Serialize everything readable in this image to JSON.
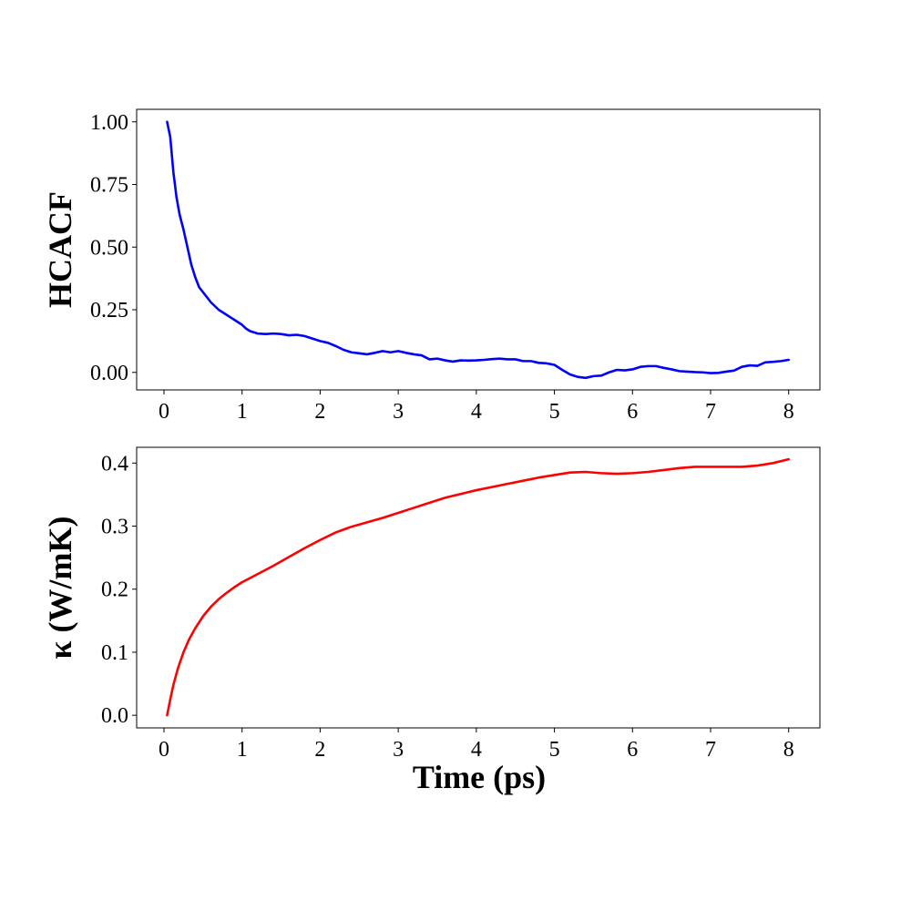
{
  "chart_data": [
    {
      "type": "line",
      "xlabel": "",
      "ylabel": "HCACF",
      "xlim": [
        -0.35,
        8.4
      ],
      "ylim": [
        -0.07,
        1.05
      ],
      "xticks": [
        0,
        1,
        2,
        3,
        4,
        5,
        6,
        7,
        8
      ],
      "xtick_labels": [
        "0",
        "1",
        "2",
        "3",
        "4",
        "5",
        "6",
        "7",
        "8"
      ],
      "yticks": [
        0.0,
        0.25,
        0.5,
        0.75,
        1.0
      ],
      "ytick_labels": [
        "0.00",
        "0.25",
        "0.50",
        "0.75",
        "1.00"
      ],
      "grid": false,
      "series": [
        {
          "color": "#0000ff",
          "x": [
            0.04,
            0.08,
            0.12,
            0.16,
            0.2,
            0.25,
            0.3,
            0.35,
            0.4,
            0.45,
            0.5,
            0.6,
            0.7,
            0.8,
            0.9,
            1.0,
            1.05,
            1.1,
            1.2,
            1.3,
            1.4,
            1.5,
            1.6,
            1.7,
            1.8,
            1.9,
            2.0,
            2.1,
            2.2,
            2.3,
            2.4,
            2.5,
            2.6,
            2.7,
            2.8,
            2.9,
            3.0,
            3.1,
            3.2,
            3.3,
            3.4,
            3.5,
            3.6,
            3.7,
            3.8,
            3.9,
            4.0,
            4.1,
            4.2,
            4.3,
            4.4,
            4.5,
            4.6,
            4.7,
            4.8,
            4.9,
            5.0,
            5.1,
            5.2,
            5.3,
            5.4,
            5.5,
            5.6,
            5.7,
            5.8,
            5.9,
            6.0,
            6.1,
            6.2,
            6.3,
            6.4,
            6.5,
            6.6,
            6.7,
            6.8,
            6.9,
            7.0,
            7.1,
            7.2,
            7.3,
            7.4,
            7.5,
            7.6,
            7.7,
            7.8,
            7.9,
            8.0
          ],
          "values": [
            1.0,
            0.94,
            0.8,
            0.7,
            0.63,
            0.57,
            0.5,
            0.43,
            0.38,
            0.34,
            0.32,
            0.28,
            0.25,
            0.23,
            0.21,
            0.19,
            0.175,
            0.165,
            0.155,
            0.153,
            0.155,
            0.153,
            0.148,
            0.15,
            0.145,
            0.135,
            0.125,
            0.118,
            0.105,
            0.09,
            0.08,
            0.076,
            0.072,
            0.078,
            0.085,
            0.08,
            0.085,
            0.078,
            0.072,
            0.068,
            0.052,
            0.055,
            0.048,
            0.043,
            0.048,
            0.047,
            0.048,
            0.05,
            0.053,
            0.055,
            0.052,
            0.052,
            0.045,
            0.045,
            0.038,
            0.036,
            0.03,
            0.01,
            -0.008,
            -0.018,
            -0.022,
            -0.015,
            -0.013,
            0.0,
            0.01,
            0.008,
            0.012,
            0.022,
            0.025,
            0.025,
            0.018,
            0.012,
            0.005,
            0.003,
            0.001,
            0.0,
            -0.003,
            -0.002,
            0.003,
            0.007,
            0.022,
            0.028,
            0.026,
            0.04,
            0.042,
            0.045,
            0.05
          ]
        }
      ]
    },
    {
      "type": "line",
      "xlabel": "Time (ps)",
      "ylabel": "κ (W/mK)",
      "xlim": [
        -0.35,
        8.4
      ],
      "ylim": [
        -0.02,
        0.425
      ],
      "xticks": [
        0,
        1,
        2,
        3,
        4,
        5,
        6,
        7,
        8
      ],
      "xtick_labels": [
        "0",
        "1",
        "2",
        "3",
        "4",
        "5",
        "6",
        "7",
        "8"
      ],
      "yticks": [
        0.0,
        0.1,
        0.2,
        0.3,
        0.4
      ],
      "ytick_labels": [
        "0.0",
        "0.1",
        "0.2",
        "0.3",
        "0.4"
      ],
      "grid": false,
      "series": [
        {
          "color": "#ff0000",
          "x": [
            0.04,
            0.08,
            0.12,
            0.18,
            0.25,
            0.32,
            0.4,
            0.5,
            0.6,
            0.7,
            0.8,
            0.9,
            1.0,
            1.2,
            1.4,
            1.6,
            1.8,
            2.0,
            2.2,
            2.4,
            2.6,
            2.8,
            3.0,
            3.2,
            3.4,
            3.6,
            3.8,
            4.0,
            4.2,
            4.4,
            4.6,
            4.8,
            5.0,
            5.2,
            5.4,
            5.6,
            5.8,
            6.0,
            6.2,
            6.4,
            6.6,
            6.8,
            7.0,
            7.2,
            7.4,
            7.6,
            7.8,
            8.0
          ],
          "values": [
            0.0,
            0.025,
            0.048,
            0.075,
            0.1,
            0.12,
            0.138,
            0.157,
            0.172,
            0.184,
            0.194,
            0.203,
            0.211,
            0.224,
            0.237,
            0.251,
            0.265,
            0.278,
            0.29,
            0.299,
            0.306,
            0.313,
            0.321,
            0.329,
            0.337,
            0.345,
            0.351,
            0.357,
            0.362,
            0.367,
            0.372,
            0.377,
            0.381,
            0.385,
            0.386,
            0.384,
            0.383,
            0.384,
            0.386,
            0.389,
            0.392,
            0.394,
            0.394,
            0.394,
            0.394,
            0.396,
            0.4,
            0.406
          ]
        }
      ]
    }
  ]
}
